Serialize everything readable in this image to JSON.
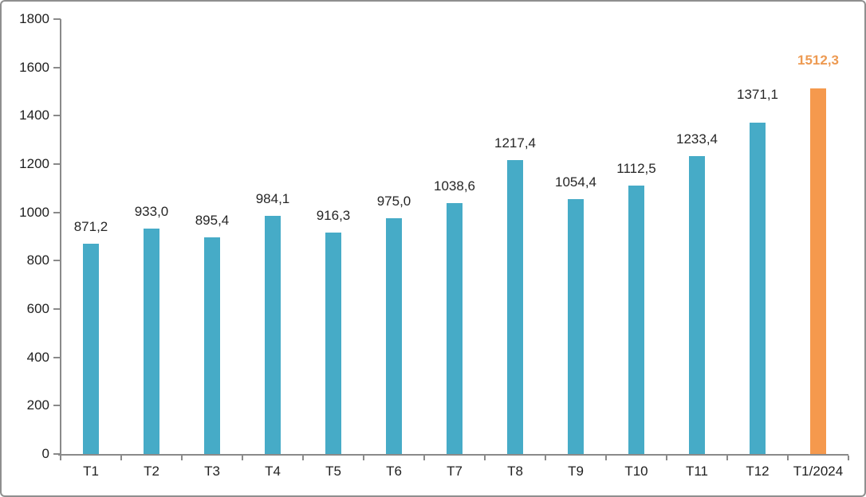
{
  "window": {
    "background": "#ffffff",
    "border_color": "#8f8f8f"
  },
  "chart_data": {
    "type": "bar",
    "title": "",
    "xlabel": "",
    "ylabel": "",
    "categories": [
      "T1",
      "T2",
      "T3",
      "T4",
      "T5",
      "T6",
      "T7",
      "T8",
      "T9",
      "T10",
      "T11",
      "T12",
      "T1/2024"
    ],
    "values": [
      871.2,
      933.0,
      895.4,
      984.1,
      916.3,
      975.0,
      1038.6,
      1217.4,
      1054.4,
      1112.5,
      1233.4,
      1371.1,
      1512.3
    ],
    "value_labels": [
      "871,2",
      "933,0",
      "895,4",
      "984,1",
      "916,3",
      "975,0",
      "1038,6",
      "1217,4",
      "1054,4",
      "1112,5",
      "1233,4",
      "1371,1",
      "1512,3"
    ],
    "ylim": [
      0,
      1800
    ],
    "ytick_step": 200,
    "yticks": [
      0,
      200,
      400,
      600,
      800,
      1000,
      1200,
      1400,
      1600,
      1800
    ],
    "grid": false,
    "legend": false,
    "highlight_index": 12,
    "colors": {
      "bar": "#46abc7",
      "bar_highlight": "#f5994d",
      "value_label": "#262626",
      "value_label_highlight": "#ed9a52",
      "axis": "#8a8a8a",
      "tick_label": "#1f1f1f"
    }
  }
}
